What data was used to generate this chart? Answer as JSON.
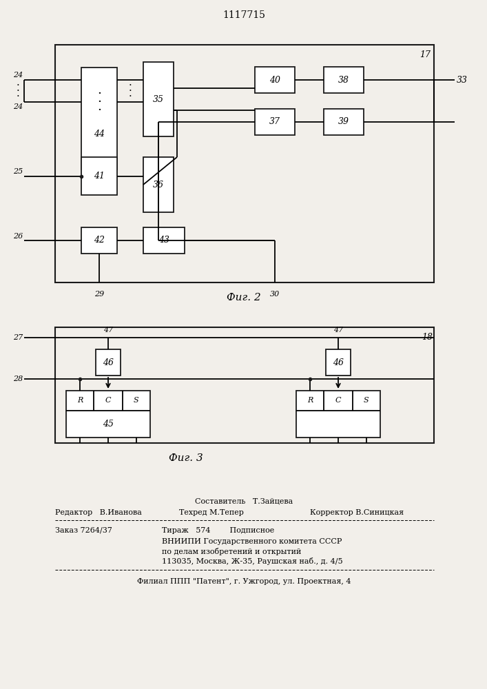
{
  "title": "1117715",
  "fig2_label": "Фиг. 2",
  "fig3_label": "Фиг. 3",
  "bg_color": "#f2efea",
  "box_color": "#ffffff",
  "line_color": "#1a1a1a",
  "footer": {
    "line1_center": "Составитель   Т.Зайцева",
    "line2_left": "Редактор   В.Иванова",
    "line2_center": "Техред М.Тепер",
    "line2_right": "Корректор В.Синицкая",
    "line3_left": "Заказ 7264/37",
    "line3_center": "Тираж   574        Подписное",
    "line4": "ВНИИПИ Государственного комитета СССР",
    "line5": "по делам изобретений и открытий",
    "line6": "113035, Москва, Ж-35, Раушская наб., д. 4/5",
    "line7": "Филиал ППП \"Патент\", г. Ужгород, ул. Проектная, 4"
  }
}
